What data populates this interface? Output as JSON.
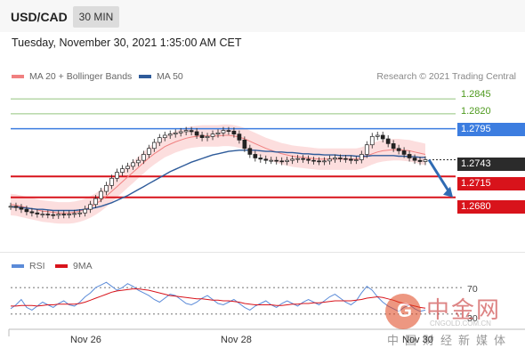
{
  "header": {
    "pair": "USD/CAD",
    "timeframe": "30 MIN"
  },
  "datetime": "Tuesday, November 30, 2021 1:35:00 AM CET",
  "legend": {
    "items": [
      {
        "label": "MA 20 + Bollinger Bands",
        "color": "#f08080"
      },
      {
        "label": "MA 50",
        "color": "#2e5b9a"
      }
    ],
    "credit": "Research © 2021 Trading Central"
  },
  "rsi_legend": {
    "items": [
      {
        "label": "RSI",
        "color": "#5b8bd8"
      },
      {
        "label": "9MA",
        "color": "#d8131b"
      }
    ],
    "levels": [
      "70",
      "30"
    ]
  },
  "xaxis": {
    "labels": [
      "Nov 26",
      "Nov 28",
      "Nov 30"
    ]
  },
  "levels": [
    {
      "value": "1.2845",
      "style": "plain",
      "color": "#93c47d"
    },
    {
      "value": "1.2820",
      "style": "plain",
      "color": "#93c47d"
    },
    {
      "value": "1.2795",
      "style": "blue",
      "color": "#3c7de0"
    },
    {
      "value": "1.2743",
      "style": "dark",
      "color": "#2b2b2b"
    },
    {
      "value": "1.2715",
      "style": "red",
      "color": "#d8131b"
    },
    {
      "value": "1.2680",
      "style": "red",
      "color": "#d8131b"
    }
  ],
  "watermark": {
    "cn": "中金网",
    "site": "CNGOLD.COM.CN",
    "sub": "中国财经新媒体"
  },
  "chart_data": {
    "type": "line",
    "title": "USD/CAD",
    "ylim": [
      1.262,
      1.286
    ],
    "series": [
      {
        "name": "Price",
        "values": [
          1.2665,
          1.2663,
          1.266,
          1.2656,
          1.2654,
          1.2652,
          1.2652,
          1.2651,
          1.265,
          1.2652,
          1.2651,
          1.2652,
          1.2653,
          1.2654,
          1.266,
          1.2668,
          1.2678,
          1.269,
          1.27,
          1.2712,
          1.2722,
          1.2728,
          1.2732,
          1.2738,
          1.2742,
          1.2752,
          1.2762,
          1.2772,
          1.278,
          1.2784,
          1.2786,
          1.2788,
          1.279,
          1.2792,
          1.279,
          1.2784,
          1.278,
          1.2782,
          1.2786,
          1.2788,
          1.2792,
          1.2791,
          1.2786,
          1.2776,
          1.2762,
          1.2752,
          1.2746,
          1.2744,
          1.2742,
          1.2742,
          1.2741,
          1.274,
          1.2742,
          1.2744,
          1.2745,
          1.2744,
          1.2742,
          1.2741,
          1.274,
          1.2741,
          1.2744,
          1.2746,
          1.2745,
          1.2744,
          1.2742,
          1.2743,
          1.2752,
          1.2768,
          1.2782,
          1.2784,
          1.2778,
          1.277,
          1.2762,
          1.2758,
          1.2752,
          1.2746,
          1.2742,
          1.274,
          1.2743
        ]
      },
      {
        "name": "MA 20",
        "values": [
          1.2668,
          1.2667,
          1.2665,
          1.2663,
          1.2661,
          1.2659,
          1.2657,
          1.2656,
          1.2655,
          1.2654,
          1.2654,
          1.2654,
          1.2655,
          1.2657,
          1.266,
          1.2664,
          1.2669,
          1.2675,
          1.2682,
          1.269,
          1.2698,
          1.2706,
          1.2714,
          1.2722,
          1.273,
          1.2738,
          1.2746,
          1.2753,
          1.2759,
          1.2765,
          1.2769,
          1.2773,
          1.2776,
          1.2779,
          1.2781,
          1.2782,
          1.2783,
          1.2783,
          1.2783,
          1.2783,
          1.2784,
          1.2784,
          1.2783,
          1.2781,
          1.2778,
          1.2774,
          1.277,
          1.2766,
          1.2762,
          1.2759,
          1.2756,
          1.2753,
          1.2751,
          1.2749,
          1.2748,
          1.2747,
          1.2746,
          1.2745,
          1.2744,
          1.2744,
          1.2744,
          1.2744,
          1.2744,
          1.2744,
          1.2744,
          1.2744,
          1.2746,
          1.2749,
          1.2753,
          1.2756,
          1.2758,
          1.2759,
          1.276,
          1.276,
          1.2759,
          1.2758,
          1.2756,
          1.2754,
          1.2752
        ]
      },
      {
        "name": "MA 50",
        "values": [
          1.2664,
          1.2664,
          1.2663,
          1.2662,
          1.2661,
          1.266,
          1.266,
          1.2659,
          1.2658,
          1.2658,
          1.2658,
          1.2658,
          1.2658,
          1.2659,
          1.266,
          1.2661,
          1.2663,
          1.2665,
          1.2668,
          1.2671,
          1.2675,
          1.2679,
          1.2683,
          1.2688,
          1.2693,
          1.2698,
          1.2703,
          1.2708,
          1.2713,
          1.2718,
          1.2723,
          1.2727,
          1.2731,
          1.2735,
          1.2739,
          1.2742,
          1.2745,
          1.2748,
          1.2751,
          1.2753,
          1.2755,
          1.2757,
          1.2758,
          1.2759,
          1.2759,
          1.2759,
          1.2759,
          1.2758,
          1.2757,
          1.2757,
          1.2756,
          1.2756,
          1.2755,
          1.2755,
          1.2754,
          1.2753,
          1.2753,
          1.2752,
          1.2752,
          1.2751,
          1.2751,
          1.2751,
          1.275,
          1.275,
          1.275,
          1.2749,
          1.2749,
          1.2749,
          1.275,
          1.275,
          1.275,
          1.275,
          1.275,
          1.2749,
          1.2749,
          1.2748,
          1.2748,
          1.2747,
          1.2747
        ]
      }
    ],
    "bollinger_width": 0.0018,
    "forecast": {
      "from": 1.2743,
      "to": 1.268
    },
    "rsi": {
      "ylim": [
        15,
        85
      ],
      "series": [
        {
          "name": "RSI",
          "values": [
            38,
            44,
            52,
            40,
            36,
            42,
            48,
            44,
            40,
            46,
            50,
            44,
            42,
            48,
            56,
            62,
            70,
            74,
            78,
            72,
            66,
            70,
            76,
            72,
            66,
            62,
            58,
            52,
            48,
            54,
            60,
            58,
            52,
            46,
            44,
            48,
            54,
            58,
            52,
            46,
            44,
            48,
            52,
            46,
            40,
            36,
            42,
            46,
            50,
            44,
            40,
            46,
            50,
            46,
            42,
            48,
            52,
            48,
            44,
            50,
            56,
            60,
            54,
            48,
            44,
            50,
            62,
            72,
            66,
            56,
            48,
            42,
            38,
            34,
            40,
            44,
            38,
            34,
            36
          ]
        },
        {
          "name": "9MA",
          "values": [
            42,
            42,
            43,
            43,
            43,
            42,
            43,
            44,
            44,
            45,
            45,
            45,
            45,
            46,
            48,
            51,
            54,
            57,
            60,
            63,
            65,
            66,
            67,
            68,
            68,
            67,
            66,
            64,
            62,
            60,
            58,
            57,
            56,
            55,
            54,
            53,
            53,
            52,
            51,
            51,
            50,
            50,
            49,
            48,
            46,
            45,
            44,
            44,
            44,
            44,
            43,
            43,
            44,
            45,
            45,
            46,
            46,
            47,
            47,
            48,
            49,
            50,
            50,
            50,
            50,
            51,
            52,
            54,
            55,
            56,
            55,
            53,
            51,
            48,
            46,
            44,
            42,
            40,
            39
          ]
        }
      ]
    }
  }
}
